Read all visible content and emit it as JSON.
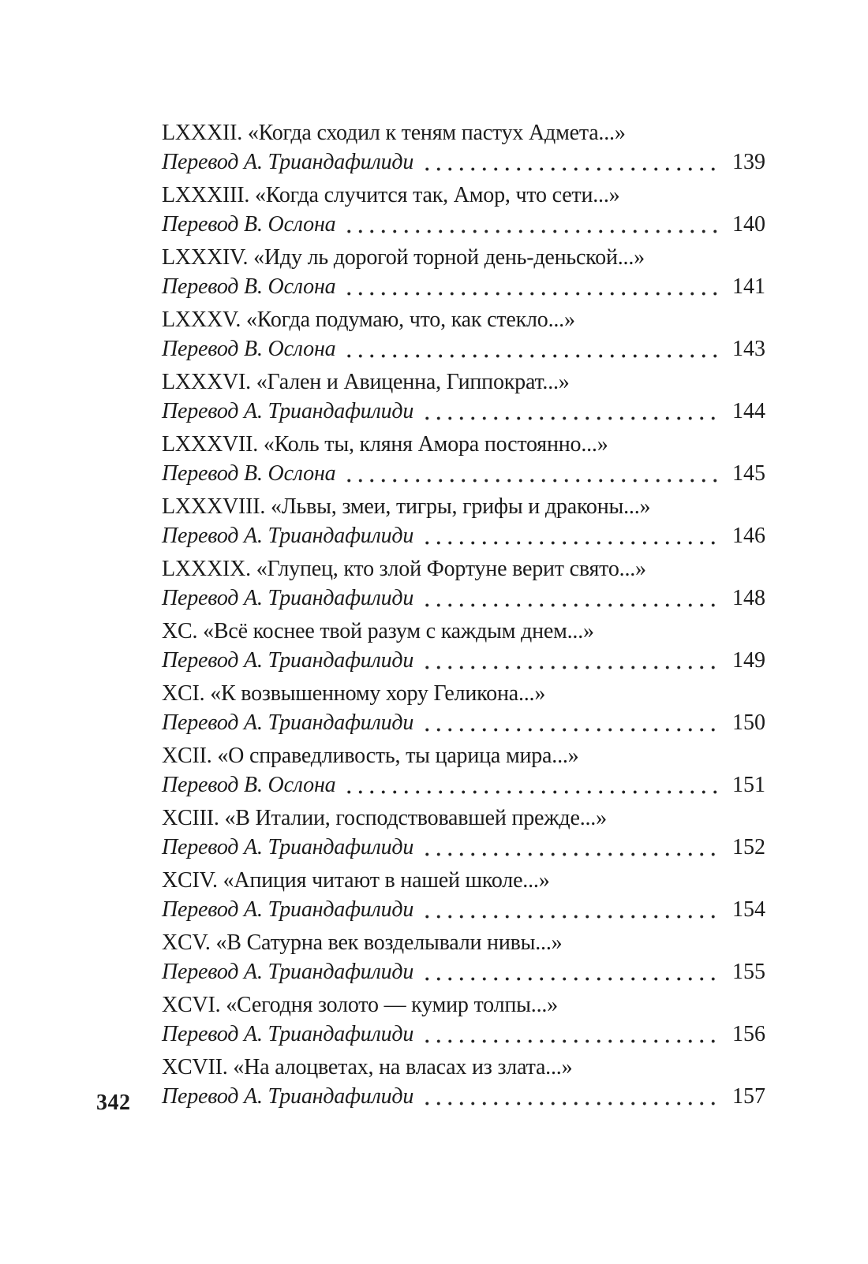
{
  "page": {
    "folio": "342",
    "background": "#ffffff",
    "text_color": "#1b1b1b"
  },
  "toc": {
    "entries": [
      {
        "title": "LXXXII. «Когда сходил к теням пастух Адмета...»",
        "translator": "Перевод А. Триандафилиди",
        "page": "139"
      },
      {
        "title": "LXXXIII. «Когда случится так, Амор, что сети...»",
        "translator": "Перевод В. Ослона",
        "page": "140"
      },
      {
        "title": "LXXXIV. «Иду ль дорогой торной день-деньской...»",
        "translator": "Перевод В. Ослона",
        "page": "141"
      },
      {
        "title": "LXXXV. «Когда подумаю, что, как стекло...»",
        "translator": "Перевод В. Ослона",
        "page": "143"
      },
      {
        "title": "LXXXVI. «Гален и Авиценна, Гиппократ...»",
        "translator": "Перевод А. Триандафилиди",
        "page": "144"
      },
      {
        "title": "LXXXVII. «Коль ты, кляня Амора постоянно...»",
        "translator": "Перевод В. Ослона",
        "page": "145"
      },
      {
        "title": "LXXXVIII. «Львы, змеи, тигры, грифы и драконы...»",
        "translator": "Перевод А. Триандафилиди",
        "page": "146"
      },
      {
        "title": "LXXXIX. «Глупец, кто злой Фортуне верит свято...»",
        "translator": "Перевод А. Триандафилиди",
        "page": "148"
      },
      {
        "title": "XC. «Всё коснее твой разум с каждым днем...»",
        "translator": "Перевод А. Триандафилиди",
        "page": "149"
      },
      {
        "title": "XCI. «К возвышенному хору Геликона...»",
        "translator": "Перевод А. Триандафилиди",
        "page": "150"
      },
      {
        "title": "XCII. «О справедливость, ты царица мира...»",
        "translator": "Перевод В. Ослона",
        "page": "151"
      },
      {
        "title": "XCIII. «В Италии, господствовавшей прежде...»",
        "translator": "Перевод А. Триандафилиди",
        "page": "152"
      },
      {
        "title": "XCIV. «Апиция читают в нашей школе...»",
        "translator": "Перевод А. Триандафилиди",
        "page": "154"
      },
      {
        "title": "XCV. «В Сатурна век возделывали нивы...»",
        "translator": "Перевод А. Триандафилиди",
        "page": "155"
      },
      {
        "title": "XCVI. «Сегодня золото — кумир толпы...»",
        "translator": "Перевод А. Триандафилиди",
        "page": "156"
      },
      {
        "title": "XCVII. «На алоцветах, на власах из злата...»",
        "translator": "Перевод А. Триандафилиди",
        "page": "157"
      }
    ]
  }
}
